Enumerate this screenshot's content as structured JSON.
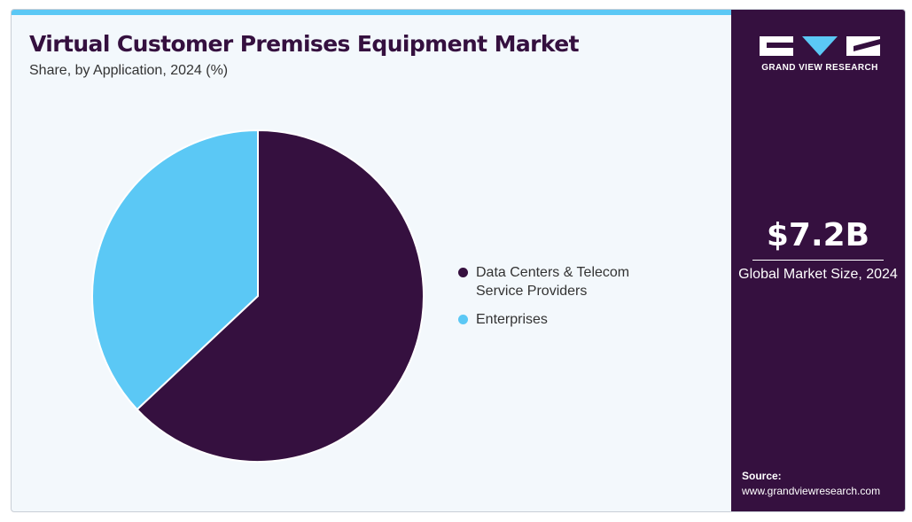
{
  "brand": {
    "name": "GRAND VIEW RESEARCH",
    "bg_color": "#35103f",
    "accent_color": "#5bc8f5"
  },
  "sidebar": {
    "market_value": "$7.2B",
    "market_label": "Global Market Size, 2024",
    "source_label": "Source:",
    "source_url": "www.grandviewresearch.com"
  },
  "chart_data": {
    "type": "pie",
    "title": "Virtual Customer Premises Equipment Market",
    "subtitle": "Share, by Application, 2024 (%)",
    "start_angle_deg": 0,
    "direction": "clockwise",
    "legend_position": "right",
    "slices": [
      {
        "label": "Data Centers & Telecom Service Providers",
        "legend_lines": [
          "Data Centers & Telecom",
          "Service Providers"
        ],
        "value": 63,
        "color": "#35103f"
      },
      {
        "label": "Enterprises",
        "legend_lines": [
          "Enterprises"
        ],
        "value": 37,
        "color": "#5bc8f5"
      }
    ]
  }
}
